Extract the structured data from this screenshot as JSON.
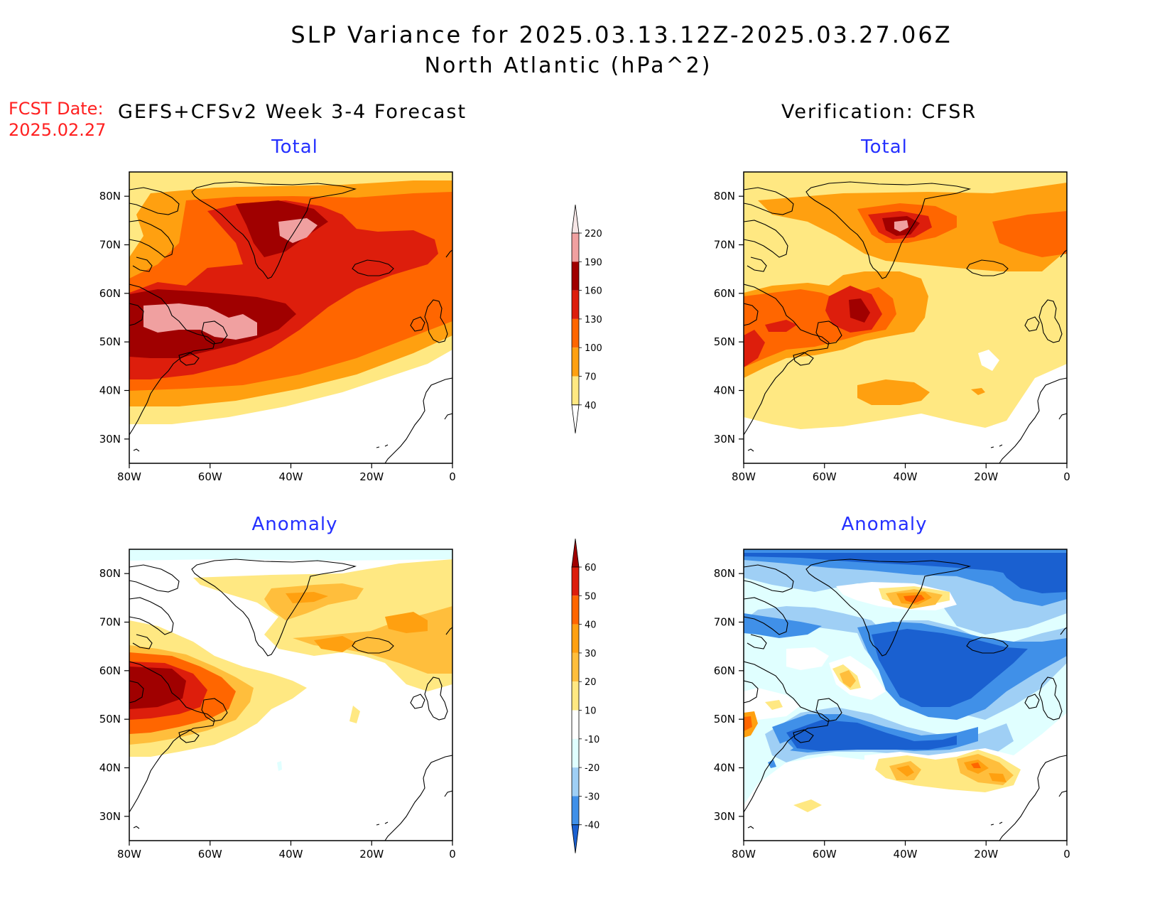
{
  "header": {
    "title": "SLP Variance for 2025.03.13.12Z-2025.03.27.06Z",
    "subtitle": "North Atlantic (hPa^2)",
    "fcst_date_label": "FCST Date:",
    "fcst_date_value": "2025.02.27",
    "left_column": "GEFS+CFSv2 Week 3-4 Forecast",
    "right_column": "Verification: CFSR"
  },
  "panels": {
    "fc_total": {
      "title": "Total"
    },
    "obs_total": {
      "title": "Total"
    },
    "fc_anom": {
      "title": "Anomaly"
    },
    "obs_anom": {
      "title": "Anomaly"
    }
  },
  "axes": {
    "lat_ticks": [
      "80N",
      "70N",
      "60N",
      "50N",
      "40N",
      "30N"
    ],
    "lon_ticks": [
      "80W",
      "60W",
      "40W",
      "20W",
      "0"
    ],
    "lon_range": [
      -80,
      0
    ],
    "lat_range": [
      25,
      85
    ]
  },
  "colorbars": {
    "total": {
      "labels": [
        "220",
        "190",
        "160",
        "130",
        "100",
        "70",
        "40"
      ],
      "colors": [
        "#f6e6e6",
        "#f0a0a0",
        "#a00000",
        "#dd1e0c",
        "#ff6600",
        "#ffa010",
        "#ffe882"
      ]
    },
    "anomaly": {
      "labels": [
        "60",
        "50",
        "40",
        "30",
        "20",
        "10",
        "-10",
        "-20",
        "-30",
        "-40"
      ],
      "colors": [
        "#a00000",
        "#dd1e0c",
        "#ff6600",
        "#ffa010",
        "#ffbe3c",
        "#ffe882",
        "#ffffff",
        "#e0ffff",
        "#9fcff5",
        "#4090e8",
        "#1a60d0"
      ]
    }
  },
  "colors": {
    "title_red": "#ff2020",
    "panel_title_blue": "#2530ff"
  }
}
